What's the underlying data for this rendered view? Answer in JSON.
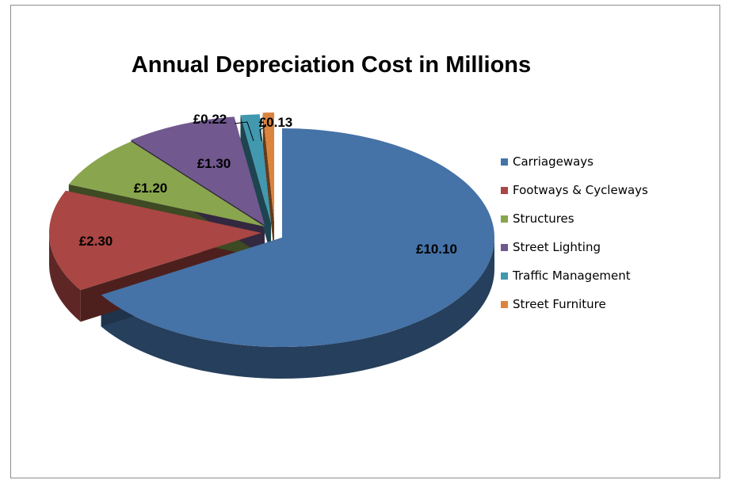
{
  "chart_data": {
    "type": "pie",
    "title": "Annual Depreciation Cost in Millions",
    "categories": [
      "Carriageways",
      "Footways & Cycleways",
      "Structures",
      "Street Lighting",
      "Traffic Management",
      "Street Furniture"
    ],
    "values": [
      10.1,
      2.3,
      1.2,
      1.3,
      0.22,
      0.13
    ],
    "labels": [
      "£10.10",
      "£2.30",
      "£1.20",
      "£1.30",
      "£0.22",
      "£0.13"
    ],
    "colors": [
      "#4572a7",
      "#aa4643",
      "#89a54e",
      "#71588f",
      "#4198af",
      "#db843d"
    ],
    "legend": "right",
    "style": "3d-exploded"
  }
}
